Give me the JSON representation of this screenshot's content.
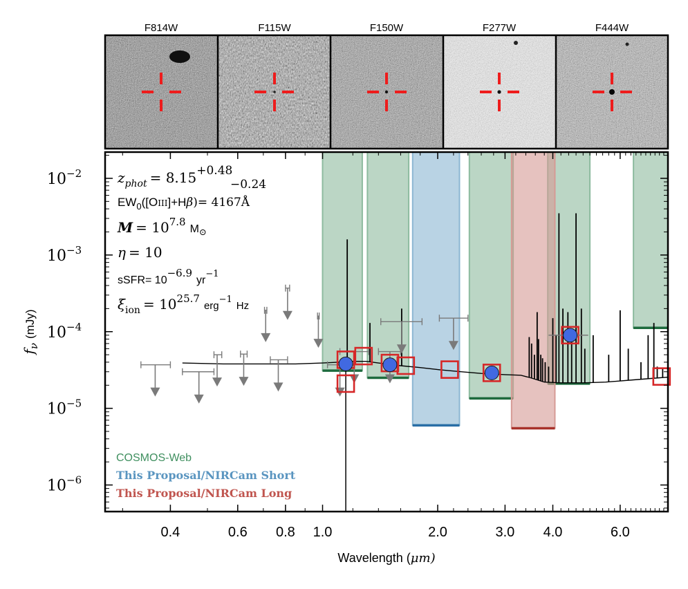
{
  "stamps": {
    "bands": [
      "F814W",
      "F115W",
      "F150W",
      "F277W",
      "F444W"
    ]
  },
  "annotations": {
    "zphot": {
      "lhs": "z",
      "sub": "phot",
      "eq": "= 8.15",
      "sup": "+0.48",
      "subval": "−0.24"
    },
    "ew": {
      "text": "EW",
      "sub": "0",
      "mid": "([O",
      "roman": "III",
      "tail": "]+H",
      "beta": "β",
      "eq": ")= 4167Å"
    },
    "mass": {
      "lhs": "M",
      "eq": "= 10",
      "exp": "7.8",
      "unit": "M",
      "unit_sub": "⊙"
    },
    "eta": {
      "lhs": "η",
      "eq": "= 10"
    },
    "ssfr": {
      "lhs": "sSFR= 10",
      "exp": "−6.9",
      "unit": "yr",
      "unit_exp": "−1"
    },
    "xi": {
      "lhs": "ξ",
      "sub": "ion",
      "eq": "= 10",
      "exp": "25.7",
      "unit": "erg",
      "unit_exp": "−1",
      "unit2": "Hz"
    }
  },
  "legend": {
    "cosmos": {
      "label": "COSMOS-Web",
      "color": "#3f8f5f"
    },
    "short": {
      "label": "This Proposal/NIRCam Short",
      "color": "#5a95c0"
    },
    "long": {
      "label": "This Proposal/NIRCam Long",
      "color": "#c0554f"
    }
  },
  "chart_data": {
    "type": "scatter",
    "x_scale": "log",
    "y_scale": "log",
    "xlabel_text": "Wavelength (",
    "xlabel_unit": "μm)",
    "ylabel": "f",
    "ylabel_sub": "ν",
    "ylabel_unit": "(mJy)",
    "xlim": [
      0.27,
      8.0
    ],
    "ylim": [
      4.5e-07,
      0.022
    ],
    "x_ticks": [
      0.4,
      0.6,
      0.8,
      1.0,
      2.0,
      3.0,
      4.0,
      6.0
    ],
    "x_tick_labels": [
      "0.4",
      "0.6",
      "0.8",
      "1.0",
      "2.0",
      "3.0",
      "4.0",
      "6.0"
    ],
    "y_ticks": [
      1e-06,
      1e-05,
      0.0001,
      0.001,
      0.01
    ],
    "y_tick_base": "10",
    "y_tick_exps": [
      "−6",
      "−5",
      "−4",
      "−3",
      "−2"
    ],
    "filter_bands": [
      {
        "group": "cosmos",
        "x0": 1.0,
        "x1": 1.27,
        "limit": 3.1e-05
      },
      {
        "group": "cosmos",
        "x0": 1.31,
        "x1": 1.68,
        "limit": 2.5e-05
      },
      {
        "group": "cosmos",
        "x0": 2.42,
        "x1": 3.15,
        "limit": 1.35e-05
      },
      {
        "group": "cosmos",
        "x0": 3.88,
        "x1": 5.0,
        "limit": 2.1e-05
      },
      {
        "group": "cosmos",
        "x0": 6.5,
        "x1": 8.0,
        "limit": 0.000112
      },
      {
        "group": "short",
        "x0": 1.72,
        "x1": 2.28,
        "limit": 6e-06
      },
      {
        "group": "long",
        "x0": 3.12,
        "x1": 4.05,
        "limit": 5.5e-06
      }
    ],
    "upper_limits": [
      {
        "x": 0.365,
        "xerr": [
          0.335,
          0.4
        ],
        "y": 3.7e-05
      },
      {
        "x": 0.475,
        "xerr": [
          0.43,
          0.52
        ],
        "y": 3e-05
      },
      {
        "x": 0.53,
        "xerr": [
          0.52,
          0.545
        ],
        "y": 5e-05
      },
      {
        "x": 0.622,
        "xerr": [
          0.61,
          0.635
        ],
        "y": 5.1e-05
      },
      {
        "x": 0.766,
        "xerr": [
          0.73,
          0.81
        ],
        "y": 4.3e-05
      },
      {
        "x": 0.71,
        "xerr": [
          0.705,
          0.715
        ],
        "y": 0.00019
      },
      {
        "x": 0.81,
        "xerr": [
          0.8,
          0.82
        ],
        "y": 0.00037
      },
      {
        "x": 0.975,
        "xerr": [
          0.97,
          0.98
        ],
        "y": 0.00016
      },
      {
        "x": 1.11,
        "xerr": [
          1.03,
          1.21
        ],
        "y": 3.7e-05
      },
      {
        "x": 1.21,
        "xerr": [
          1.11,
          1.32
        ],
        "y": 5.5e-05
      },
      {
        "x": 1.5,
        "xerr": [
          1.4,
          1.6
        ],
        "y": 5.5e-05
      },
      {
        "x": 1.61,
        "xerr": [
          1.42,
          1.82
        ],
        "y": 0.000135
      },
      {
        "x": 2.2,
        "xerr": [
          2.02,
          2.4
        ],
        "y": 0.00015
      }
    ],
    "detections": [
      {
        "x": 1.15,
        "y": 3.8e-05,
        "yerr": [
          3.45e-05,
          4.15e-05
        ]
      },
      {
        "x": 1.5,
        "y": 3.7e-05,
        "yerr": [
          3.45e-05,
          3.95e-05
        ]
      },
      {
        "x": 2.77,
        "y": 2.9e-05,
        "yerr": [
          2.7e-05,
          3.1e-05
        ]
      },
      {
        "x": 4.44,
        "y": 9e-05,
        "yerr": [
          8e-05,
          0.0001
        ],
        "xerr": [
          3.9,
          4.95
        ]
      }
    ],
    "model_photometry": [
      {
        "x": 1.15,
        "y": 2.1e-05
      },
      {
        "x": 1.15,
        "y": 4.3e-05
      },
      {
        "x": 1.28,
        "y": 4.8e-05
      },
      {
        "x": 1.5,
        "y": 3.9e-05
      },
      {
        "x": 1.65,
        "y": 3.6e-05
      },
      {
        "x": 2.15,
        "y": 3.2e-05
      },
      {
        "x": 2.77,
        "y": 2.9e-05
      },
      {
        "x": 4.44,
        "y": 9e-05
      },
      {
        "x": 7.7,
        "y": 2.6e-05
      }
    ]
  }
}
